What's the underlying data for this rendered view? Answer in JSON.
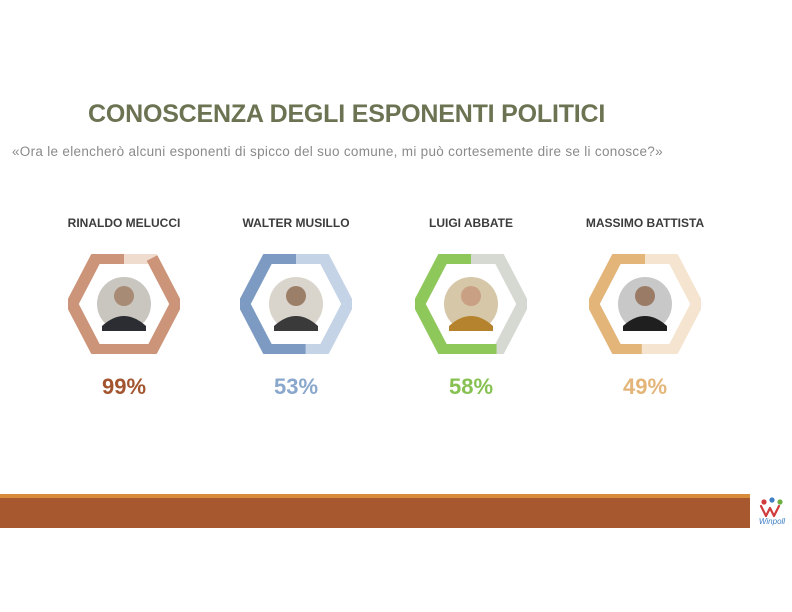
{
  "title": "CONOSCENZA DEGLI ESPONENTI POLITICI",
  "question": "«Ora le elencherò alcuni esponenti di spicco del suo comune, mi può cortesemente dire se li conosce?»",
  "colors": {
    "title": "#6b7352",
    "question": "#8a8a8a",
    "footer": "#a7582f",
    "footer_accent": "#d88c3a"
  },
  "politicians": [
    {
      "name": "RINALDO MELUCCI",
      "percent_label": "99%",
      "percent": 99,
      "color": "#cc9478",
      "track": "#f0dccf",
      "text_color": "#a3552f"
    },
    {
      "name": "WALTER MUSILLO",
      "percent_label": "53%",
      "percent": 53,
      "color": "#7d9bc2",
      "track": "#c5d3e6",
      "text_color": "#8aa7cc"
    },
    {
      "name": "LUIGI ABBATE",
      "percent_label": "58%",
      "percent": 58,
      "color": "#8fc85a",
      "track": "#d6d8d2",
      "text_color": "#86c152"
    },
    {
      "name": "MASSIMO BATTISTA",
      "percent_label": "49%",
      "percent": 49,
      "color": "#e3b579",
      "track": "#f5e4cf",
      "text_color": "#e3b579"
    }
  ],
  "logo": {
    "text": "Winpoll",
    "icon": "winpoll-logo"
  }
}
